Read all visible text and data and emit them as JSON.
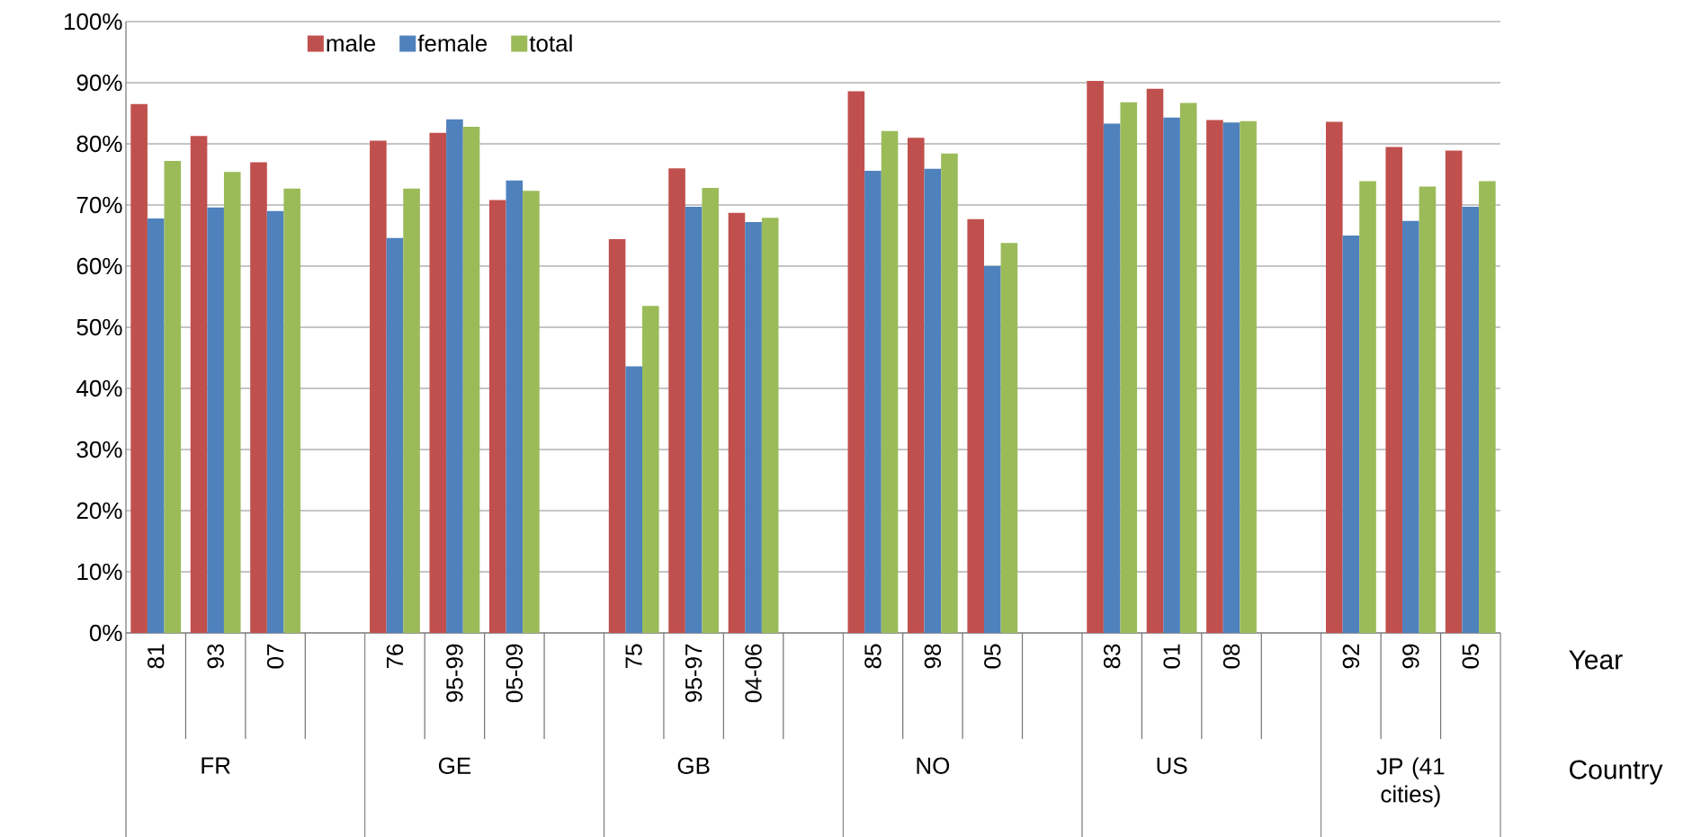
{
  "chart_data": {
    "type": "bar",
    "xlabel": "Year",
    "categories": [
      "81",
      "93",
      "07",
      null,
      "76",
      "95-99",
      "05-09",
      null,
      "75",
      "95-97",
      "04-06",
      null,
      "85",
      "98",
      "05",
      null,
      "83",
      "01",
      "08",
      null,
      "92",
      "99",
      "05"
    ],
    "series": [
      {
        "name": "male",
        "color": "#c0504d",
        "values": [
          86.5,
          81.3,
          77.0,
          null,
          80.5,
          81.8,
          70.8,
          null,
          64.4,
          76.0,
          68.7,
          null,
          88.6,
          81.0,
          67.7,
          null,
          90.3,
          89.0,
          83.9,
          null,
          83.6,
          79.5,
          78.9
        ]
      },
      {
        "name": "female",
        "color": "#4f81bd",
        "values": [
          67.8,
          69.6,
          69.0,
          null,
          64.6,
          84.0,
          74.0,
          null,
          43.6,
          69.7,
          67.2,
          null,
          75.6,
          75.9,
          60.0,
          null,
          83.3,
          84.3,
          83.5,
          null,
          65.0,
          67.4,
          69.7
        ]
      },
      {
        "name": "total",
        "color": "#9bbb59",
        "values": [
          77.2,
          75.4,
          72.7,
          null,
          72.7,
          82.8,
          72.3,
          null,
          53.5,
          72.8,
          67.9,
          null,
          82.1,
          78.4,
          63.8,
          null,
          86.8,
          86.7,
          83.7,
          null,
          73.9,
          73.0,
          73.9
        ]
      }
    ],
    "ylim": [
      0,
      100
    ],
    "yticks": [
      {
        "value": 0,
        "label": "0%"
      },
      {
        "value": 10,
        "label": "10%"
      },
      {
        "value": 20,
        "label": "20%"
      },
      {
        "value": 30,
        "label": "30%"
      },
      {
        "value": 40,
        "label": "40%"
      },
      {
        "value": 50,
        "label": "50%"
      },
      {
        "value": 60,
        "label": "60%"
      },
      {
        "value": 70,
        "label": "70%"
      },
      {
        "value": 80,
        "label": "80%"
      },
      {
        "value": 90,
        "label": "90%"
      },
      {
        "value": 100,
        "label": "100%"
      }
    ],
    "grid": "y",
    "legend": "top left",
    "annotations": [
      "FR",
      "GE",
      "GB",
      "NO",
      "US",
      "JP (41 cities)",
      "Country"
    ]
  }
}
